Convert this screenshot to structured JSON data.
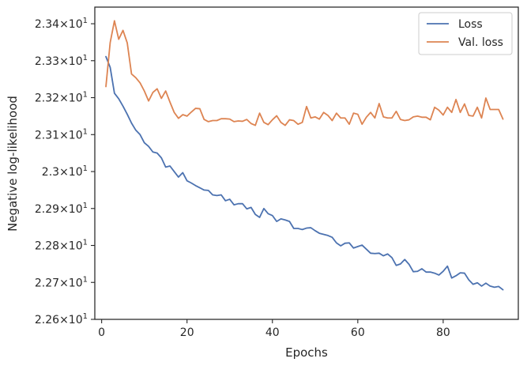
{
  "chart_data": {
    "type": "line",
    "xlabel": "Epochs",
    "ylabel": "Negative log-likelihood",
    "xlim": [
      -1.6,
      97.6
    ],
    "ylim": [
      22.6,
      23.445
    ],
    "xticks": [
      0,
      20,
      40,
      60,
      80
    ],
    "xtick_labels": [
      "0",
      "20",
      "40",
      "60",
      "80"
    ],
    "yticks": [
      22.6,
      22.7,
      22.8,
      22.9,
      23.0,
      23.1,
      23.2,
      23.3,
      23.4
    ],
    "ytick_labels": [
      {
        "mantissa": "2.26",
        "base": "10",
        "exp": "1"
      },
      {
        "mantissa": "2.27",
        "base": "10",
        "exp": "1"
      },
      {
        "mantissa": "2.28",
        "base": "10",
        "exp": "1"
      },
      {
        "mantissa": "2.29",
        "base": "10",
        "exp": "1"
      },
      {
        "mantissa": "2.3",
        "base": "10",
        "exp": "1"
      },
      {
        "mantissa": "2.31",
        "base": "10",
        "exp": "1"
      },
      {
        "mantissa": "2.32",
        "base": "10",
        "exp": "1"
      },
      {
        "mantissa": "2.33",
        "base": "10",
        "exp": "1"
      },
      {
        "mantissa": "2.34",
        "base": "10",
        "exp": "1"
      }
    ],
    "legend_position": "top-right",
    "grid": false,
    "series": [
      {
        "name": "Loss",
        "color": "#4c72b0",
        "x": [
          1,
          2,
          3,
          4,
          5,
          6,
          7,
          8,
          9,
          10,
          11,
          12,
          13,
          14,
          15,
          16,
          17,
          18,
          19,
          20,
          21,
          22,
          23,
          24,
          25,
          26,
          27,
          28,
          29,
          30,
          31,
          32,
          33,
          34,
          35,
          36,
          37,
          38,
          39,
          40,
          41,
          42,
          43,
          44,
          45,
          46,
          47,
          48,
          49,
          50,
          51,
          52,
          53,
          54,
          55,
          56,
          57,
          58,
          59,
          60,
          61,
          62,
          63,
          64,
          65,
          66,
          67,
          68,
          69,
          70,
          71,
          72,
          73,
          74,
          75,
          76,
          77,
          78,
          79,
          80,
          81,
          82,
          83,
          84,
          85,
          86,
          87,
          88,
          89,
          90,
          91,
          92,
          93,
          94
        ],
        "y": [
          23.311,
          23.282,
          23.212,
          23.197,
          23.177,
          23.155,
          23.131,
          23.112,
          23.1,
          23.078,
          23.068,
          23.053,
          23.05,
          23.037,
          23.012,
          23.015,
          23.0,
          22.985,
          22.997,
          22.975,
          22.969,
          22.962,
          22.956,
          22.95,
          22.949,
          22.937,
          22.935,
          22.937,
          22.921,
          22.925,
          22.91,
          22.913,
          22.913,
          22.899,
          22.903,
          22.884,
          22.876,
          22.9,
          22.886,
          22.881,
          22.865,
          22.872,
          22.869,
          22.865,
          22.846,
          22.846,
          22.843,
          22.847,
          22.848,
          22.84,
          22.833,
          22.83,
          22.827,
          22.822,
          22.807,
          22.799,
          22.806,
          22.807,
          22.793,
          22.797,
          22.801,
          22.79,
          22.779,
          22.778,
          22.779,
          22.772,
          22.777,
          22.767,
          22.746,
          22.75,
          22.762,
          22.749,
          22.729,
          22.73,
          22.737,
          22.728,
          22.728,
          22.725,
          22.72,
          22.73,
          22.744,
          22.712,
          22.718,
          22.726,
          22.725,
          22.707,
          22.695,
          22.699,
          22.69,
          22.698,
          22.69,
          22.687,
          22.689,
          22.68
        ]
      },
      {
        "name": "Val. loss",
        "color": "#dd8452",
        "x": [
          1,
          2,
          3,
          4,
          5,
          6,
          7,
          8,
          9,
          10,
          11,
          12,
          13,
          14,
          15,
          16,
          17,
          18,
          19,
          20,
          21,
          22,
          23,
          24,
          25,
          26,
          27,
          28,
          29,
          30,
          31,
          32,
          33,
          34,
          35,
          36,
          37,
          38,
          39,
          40,
          41,
          42,
          43,
          44,
          45,
          46,
          47,
          48,
          49,
          50,
          51,
          52,
          53,
          54,
          55,
          56,
          57,
          58,
          59,
          60,
          61,
          62,
          63,
          64,
          65,
          66,
          67,
          68,
          69,
          70,
          71,
          72,
          73,
          74,
          75,
          76,
          77,
          78,
          79,
          80,
          81,
          82,
          83,
          84,
          85,
          86,
          87,
          88,
          89,
          90,
          91,
          92,
          93,
          94
        ],
        "y": [
          23.23,
          23.349,
          23.408,
          23.358,
          23.382,
          23.348,
          23.264,
          23.254,
          23.24,
          23.218,
          23.191,
          23.214,
          23.224,
          23.198,
          23.218,
          23.188,
          23.16,
          23.144,
          23.154,
          23.15,
          23.161,
          23.171,
          23.17,
          23.141,
          23.135,
          23.138,
          23.138,
          23.143,
          23.143,
          23.142,
          23.135,
          23.137,
          23.136,
          23.141,
          23.13,
          23.125,
          23.158,
          23.133,
          23.127,
          23.14,
          23.151,
          23.133,
          23.125,
          23.14,
          23.138,
          23.128,
          23.133,
          23.176,
          23.145,
          23.148,
          23.142,
          23.16,
          23.152,
          23.138,
          23.158,
          23.145,
          23.145,
          23.128,
          23.158,
          23.155,
          23.128,
          23.147,
          23.16,
          23.145,
          23.184,
          23.148,
          23.145,
          23.145,
          23.163,
          23.141,
          23.138,
          23.14,
          23.148,
          23.15,
          23.147,
          23.147,
          23.14,
          23.174,
          23.166,
          23.153,
          23.174,
          23.16,
          23.195,
          23.16,
          23.183,
          23.152,
          23.15,
          23.174,
          23.145,
          23.199,
          23.168,
          23.168,
          23.168,
          23.142
        ]
      }
    ]
  }
}
